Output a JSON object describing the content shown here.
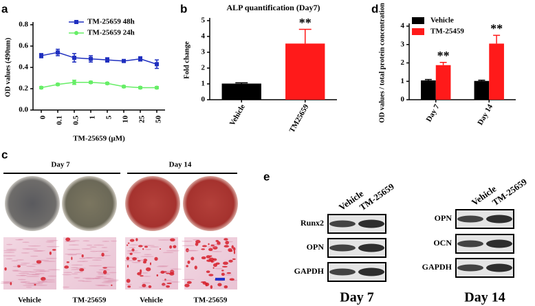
{
  "chart_data": [
    {
      "type": "line",
      "panel": "a",
      "xlabel": "TM-25659 (μM)",
      "ylabel": "OD values (490nm)",
      "categories": [
        "0",
        "0.1",
        "0.5",
        "1",
        "5",
        "10",
        "25",
        "50"
      ],
      "series": [
        {
          "name": "TM-25659 48h",
          "color": "#1f2fbf",
          "values": [
            0.51,
            0.54,
            0.49,
            0.48,
            0.47,
            0.46,
            0.48,
            0.43
          ],
          "errors": [
            0.02,
            0.03,
            0.04,
            0.03,
            0.02,
            0.01,
            0.02,
            0.04
          ]
        },
        {
          "name": "TM-25659 24h",
          "color": "#66ee66",
          "values": [
            0.21,
            0.24,
            0.26,
            0.26,
            0.25,
            0.22,
            0.21,
            0.21
          ],
          "errors": [
            0.01,
            0.01,
            0.02,
            0.01,
            0.01,
            0.01,
            0.01,
            0.01
          ]
        }
      ],
      "ylim": [
        0,
        0.8
      ],
      "yticks": [
        {
          "value": 0,
          "label": "0.0"
        },
        0.2,
        0.4,
        0.6,
        0.8
      ],
      "legend": "upper left"
    },
    {
      "type": "bar",
      "panel": "b",
      "title": "ALP quantification (Day7)",
      "ylabel": "Fold change",
      "categories": [
        "Vehicle",
        "TM25659"
      ],
      "values": [
        1.02,
        3.55
      ],
      "errors": [
        0.05,
        0.9
      ],
      "colors": [
        "#000000",
        "#ff1a1a"
      ],
      "significance": [
        null,
        "**"
      ],
      "ylim": [
        0,
        5
      ],
      "yticks": [
        0,
        1,
        2,
        3,
        4,
        5
      ]
    },
    {
      "type": "grouped-bar",
      "panel": "d",
      "ylabel": "OD values / total protein concentration",
      "categories": [
        "Day 7",
        "Day 14"
      ],
      "series": [
        {
          "name": "Vehicle",
          "color": "#000000",
          "values": [
            1.05,
            1.02
          ],
          "errors": [
            0.05,
            0.04
          ],
          "significance": [
            null,
            null
          ]
        },
        {
          "name": "TM-25459",
          "color": "#ff1a1a",
          "values": [
            1.88,
            3.05
          ],
          "errors": [
            0.15,
            0.45
          ],
          "significance": [
            "**",
            "**"
          ]
        }
      ],
      "ylim": [
        0,
        4
      ],
      "yticks": [
        0,
        1,
        2,
        3,
        4
      ],
      "legend": "upper left"
    }
  ],
  "panel_c": {
    "label": "c",
    "groups": [
      "Day 7",
      "Day 14"
    ],
    "captions": [
      "Vehicle",
      "TM-25659",
      "Vehicle",
      "TM-25659"
    ]
  },
  "panel_e": {
    "label": "e",
    "blots": [
      {
        "lanes": [
          "Vehicle",
          "TM-25659"
        ],
        "rows": [
          "Runx2",
          "OPN",
          "GAPDH"
        ],
        "caption": "Day 7"
      },
      {
        "lanes": [
          "Vehicle",
          "TM-25659"
        ],
        "rows": [
          "OPN",
          "OCN",
          "GAPDH"
        ],
        "caption": "Day 14"
      }
    ]
  }
}
